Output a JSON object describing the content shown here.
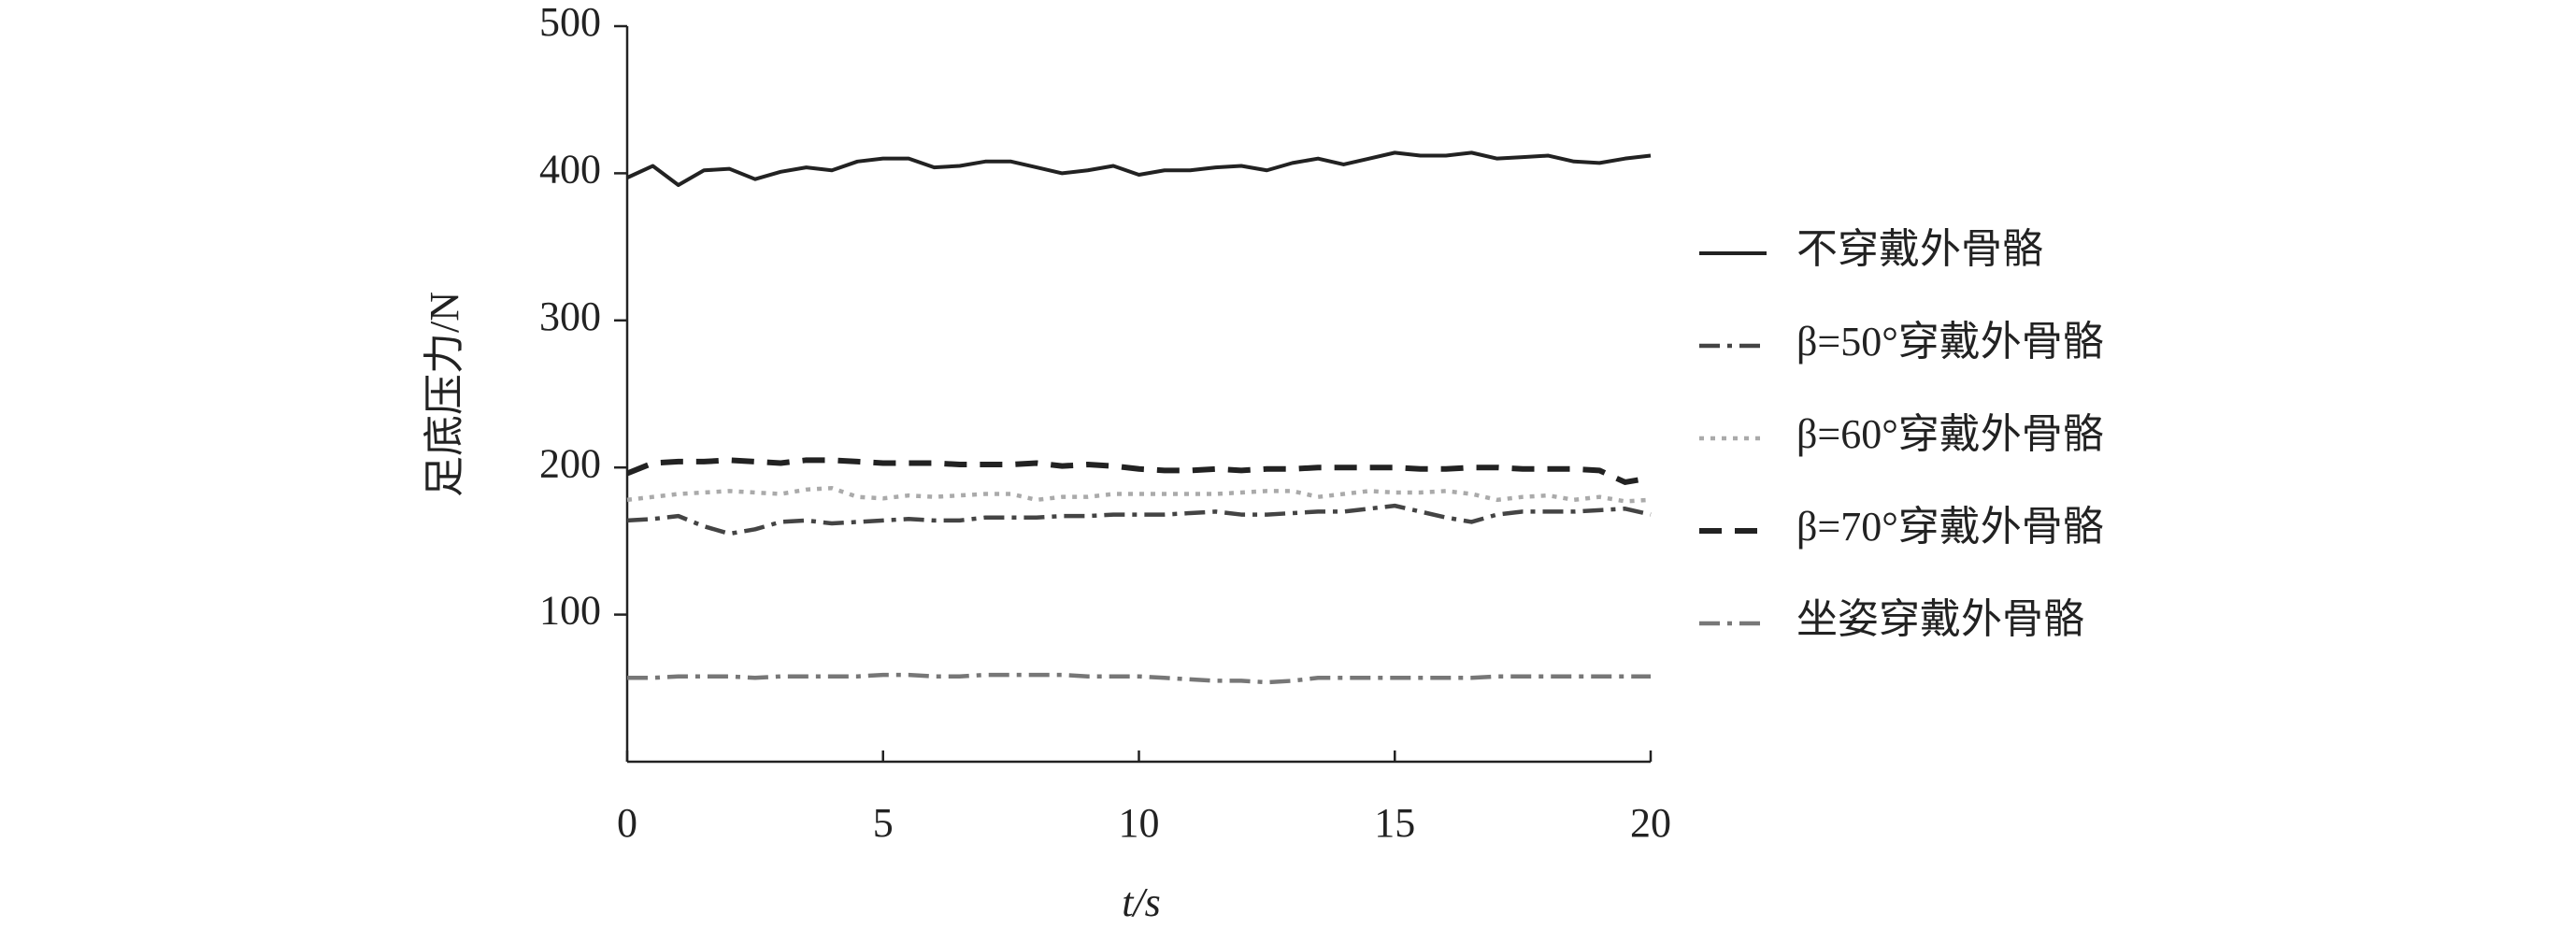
{
  "chart_data": {
    "type": "line",
    "x_label": "t/s",
    "y_label": "足底压力/N",
    "xlim": [
      0,
      20
    ],
    "xticks": [
      0,
      5,
      10,
      15,
      20
    ],
    "ylim": [
      0,
      500
    ],
    "yticks": [
      100,
      200,
      300,
      400,
      500
    ],
    "x": [
      0,
      0.5,
      1,
      1.5,
      2,
      2.5,
      3,
      3.5,
      4,
      4.5,
      5,
      5.5,
      6,
      6.5,
      7,
      7.5,
      8,
      8.5,
      9,
      9.5,
      10,
      10.5,
      11,
      11.5,
      12,
      12.5,
      13,
      13.5,
      14,
      14.5,
      15,
      15.5,
      16,
      16.5,
      17,
      17.5,
      18,
      18.5,
      19,
      19.5,
      20
    ],
    "series": [
      {
        "name": "不穿戴外骨骼",
        "color": "#222222",
        "dash": "solid",
        "values": [
          397,
          405,
          392,
          402,
          403,
          396,
          401,
          404,
          402,
          408,
          410,
          410,
          404,
          405,
          408,
          408,
          404,
          400,
          402,
          405,
          399,
          402,
          402,
          404,
          405,
          402,
          407,
          410,
          406,
          410,
          414,
          412,
          412,
          414,
          410,
          411,
          412,
          408,
          407,
          410,
          412
        ]
      },
      {
        "name": "β=50°穿戴外骨骼",
        "color": "#444444",
        "dash": "dashdot",
        "values": [
          164,
          165,
          167,
          160,
          155,
          158,
          163,
          164,
          162,
          163,
          164,
          165,
          164,
          164,
          166,
          166,
          166,
          167,
          167,
          168,
          168,
          168,
          169,
          170,
          168,
          168,
          169,
          170,
          170,
          172,
          174,
          170,
          166,
          163,
          168,
          170,
          170,
          170,
          171,
          172,
          168
        ]
      },
      {
        "name": "β=60°穿戴外骨骼",
        "color": "#aaaaaa",
        "dash": "dotted",
        "values": [
          178,
          180,
          182,
          183,
          184,
          183,
          182,
          185,
          186,
          180,
          179,
          181,
          180,
          181,
          182,
          182,
          178,
          180,
          180,
          182,
          182,
          182,
          182,
          182,
          183,
          184,
          184,
          180,
          182,
          184,
          183,
          183,
          184,
          182,
          178,
          180,
          181,
          178,
          180,
          177,
          178
        ]
      },
      {
        "name": "β=70°穿戴外骨骼",
        "color": "#222222",
        "dash": "dashed",
        "values": [
          196,
          203,
          204,
          204,
          205,
          204,
          203,
          205,
          205,
          204,
          203,
          203,
          203,
          202,
          202,
          202,
          203,
          201,
          202,
          201,
          199,
          198,
          198,
          199,
          198,
          199,
          199,
          200,
          200,
          200,
          200,
          199,
          199,
          200,
          200,
          199,
          199,
          199,
          198,
          190,
          193
        ]
      },
      {
        "name": "坐姿穿戴外骨骼",
        "color": "#777777",
        "dash": "dashdot",
        "values": [
          57,
          57,
          58,
          58,
          58,
          57,
          58,
          58,
          58,
          58,
          59,
          59,
          58,
          58,
          59,
          59,
          59,
          59,
          58,
          58,
          58,
          57,
          56,
          55,
          55,
          54,
          55,
          57,
          57,
          57,
          57,
          57,
          57,
          57,
          58,
          58,
          58,
          58,
          58,
          58,
          58
        ]
      }
    ]
  }
}
